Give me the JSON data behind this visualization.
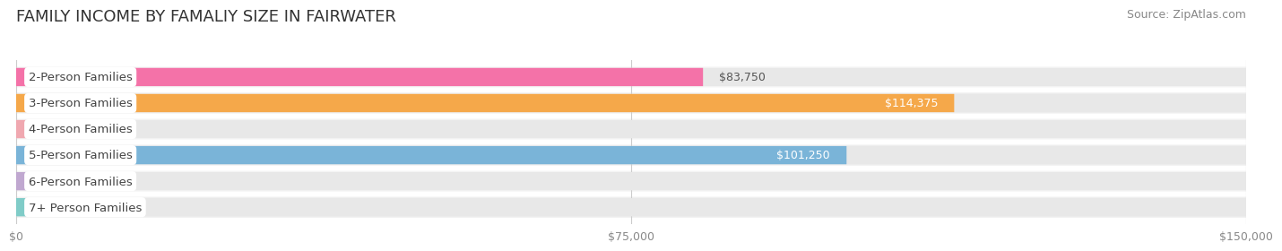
{
  "title": "FAMILY INCOME BY FAMALIY SIZE IN FAIRWATER",
  "source": "Source: ZipAtlas.com",
  "categories": [
    "2-Person Families",
    "3-Person Families",
    "4-Person Families",
    "5-Person Families",
    "6-Person Families",
    "7+ Person Families"
  ],
  "values": [
    83750,
    114375,
    0,
    101250,
    0,
    0
  ],
  "bar_colors": [
    "#f472a8",
    "#f5a84a",
    "#f0a8b0",
    "#7ab4d8",
    "#c0a8d0",
    "#80ccc8"
  ],
  "xlim": [
    0,
    150000
  ],
  "xticks": [
    0,
    75000,
    150000
  ],
  "xtick_labels": [
    "$0",
    "$75,000",
    "$150,000"
  ],
  "background_color": "#ffffff",
  "bar_bg_colors": [
    "#f5f5f5",
    "#efefef",
    "#f5f5f5",
    "#efefef",
    "#f5f5f5",
    "#efefef"
  ],
  "title_fontsize": 13,
  "source_fontsize": 9,
  "label_fontsize": 9.5,
  "value_fontsize": 9
}
